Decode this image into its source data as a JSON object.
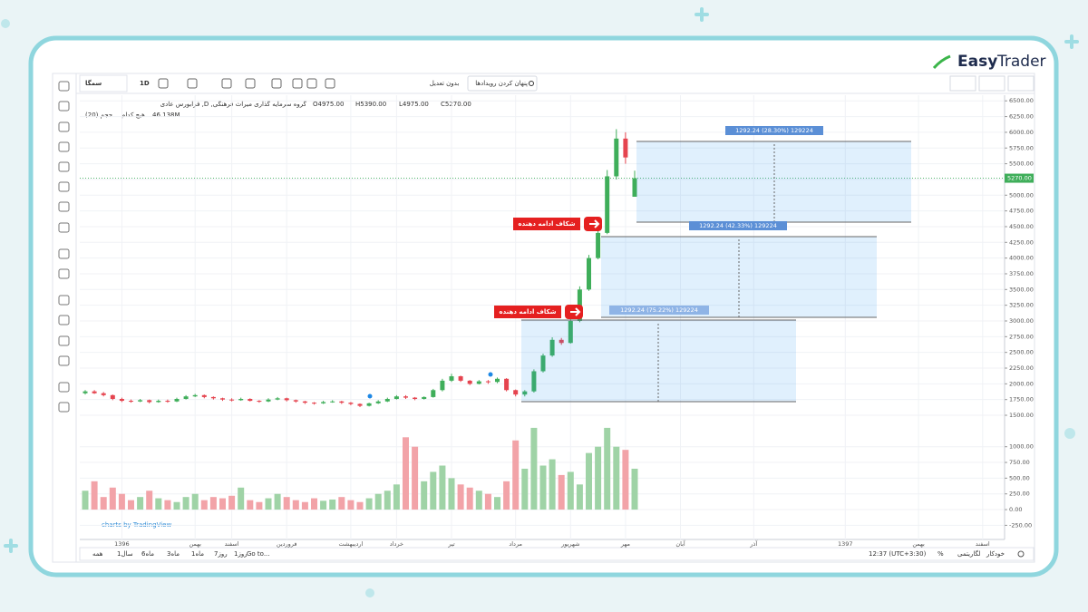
{
  "brand": {
    "easy": "Easy",
    "trader": "Trader"
  },
  "toolbar": {
    "symbol": "سمگا",
    "interval": "1D",
    "adjust": "بدون تعدیل",
    "events": "پنهان کردن رویدادها"
  },
  "legend": {
    "title": "فرابورس عادی ,D ,گروه سرمایه گذاری میراث فرهنگی",
    "o": "O4975.00",
    "h": "H5390.00",
    "l": "L4975.00",
    "c": "C5270.00",
    "volume_name": "حجم (20)",
    "volume_ma": "هیچ کدام",
    "volume_value": "46.138M"
  },
  "chart_data": {
    "type": "candlestick",
    "categories": [
      null,
      null,
      null,
      null,
      "1396",
      null,
      null,
      null,
      null,
      null,
      null,
      null,
      "بهمن",
      null,
      null,
      null,
      "اسفند",
      null,
      null,
      null,
      null,
      null,
      "فروردین",
      null,
      null,
      null,
      null,
      null,
      null,
      "اردیبهشت",
      null,
      null,
      null,
      null,
      "خرداد",
      null,
      null,
      null,
      null,
      null,
      "تیر",
      null,
      null,
      null,
      null,
      null,
      null,
      "مرداد",
      null,
      null,
      null,
      null,
      null,
      "شهریور",
      null,
      null,
      null,
      null,
      null,
      "مهر",
      null,
      null,
      null,
      null,
      null,
      "آبان",
      null,
      null,
      null,
      null,
      null,
      null,
      null,
      "آذر",
      null,
      null,
      null,
      null,
      null,
      null,
      null,
      null,
      null,
      "1397",
      null,
      null,
      null,
      null,
      null,
      null,
      null,
      "بهمن",
      null,
      null,
      null,
      null,
      null,
      null,
      "اسفند",
      null
    ],
    "open": [
      1850,
      1880,
      1850,
      1820,
      1760,
      1730,
      1720,
      1740,
      1710,
      1730,
      1720,
      1760,
      1800,
      1820,
      1790,
      1770,
      1750,
      1740,
      1760,
      1730,
      1720,
      1750,
      1770,
      1740,
      1720,
      1700,
      1690,
      1710,
      1720,
      1700,
      1680,
      1650,
      1690,
      1720,
      1760,
      1800,
      1780,
      1760,
      1790,
      1900,
      2050,
      2120,
      2050,
      2000,
      2040,
      2030,
      2080,
      1900,
      1830,
      1880,
      2200,
      2450,
      2700,
      2650,
      3000,
      3500,
      4000,
      4400,
      5300,
      5900,
      4975,
      null,
      null,
      null,
      null,
      null,
      null,
      null,
      null,
      null,
      null,
      null,
      null,
      null,
      null,
      null,
      null,
      null,
      null,
      null,
      null,
      null,
      null,
      null,
      null,
      null,
      null,
      null,
      null,
      null,
      null,
      null,
      null,
      null,
      null,
      null,
      null,
      null,
      null,
      null
    ],
    "high": [
      1900,
      1900,
      1870,
      1830,
      1780,
      1750,
      1760,
      1750,
      1750,
      1750,
      1780,
      1820,
      1840,
      1830,
      1800,
      1780,
      1770,
      1780,
      1770,
      1740,
      1770,
      1790,
      1780,
      1750,
      1730,
      1710,
      1730,
      1740,
      1730,
      1710,
      1690,
      1700,
      1740,
      1780,
      1820,
      1820,
      1790,
      1800,
      1920,
      2080,
      2160,
      2130,
      2060,
      2060,
      2060,
      2100,
      2090,
      1910,
      1900,
      2230,
      2480,
      2740,
      2730,
      3050,
      3550,
      4050,
      4450,
      5400,
      6050,
      6000,
      5390,
      null,
      null,
      null,
      null,
      null,
      null,
      null,
      null,
      null,
      null,
      null,
      null,
      null,
      null,
      null,
      null,
      null,
      null,
      null,
      null,
      null,
      null,
      null,
      null,
      null,
      null,
      null,
      null,
      null,
      null,
      null,
      null,
      null,
      null,
      null,
      null,
      null,
      null,
      null
    ],
    "low": [
      1830,
      1840,
      1800,
      1740,
      1710,
      1700,
      1710,
      1690,
      1700,
      1700,
      1710,
      1750,
      1790,
      1770,
      1750,
      1730,
      1720,
      1730,
      1720,
      1700,
      1710,
      1740,
      1720,
      1700,
      1680,
      1670,
      1680,
      1700,
      1680,
      1660,
      1630,
      1640,
      1680,
      1710,
      1750,
      1760,
      1740,
      1750,
      1780,
      1880,
      2030,
      2030,
      1980,
      1990,
      2000,
      2010,
      1880,
      1800,
      1800,
      1860,
      2180,
      2430,
      2620,
      2640,
      2980,
      3480,
      3980,
      4380,
      5250,
      5500,
      4975,
      null,
      null,
      null,
      null,
      null,
      null,
      null,
      null,
      null,
      null,
      null,
      null,
      null,
      null,
      null,
      null,
      null,
      null,
      null,
      null,
      null,
      null,
      null,
      null,
      null,
      null,
      null,
      null,
      null,
      null,
      null,
      null,
      null,
      null,
      null,
      null,
      null,
      null,
      null
    ],
    "close": [
      1880,
      1850,
      1820,
      1760,
      1730,
      1720,
      1740,
      1710,
      1730,
      1720,
      1760,
      1800,
      1820,
      1790,
      1770,
      1750,
      1740,
      1760,
      1730,
      1720,
      1750,
      1770,
      1740,
      1720,
      1700,
      1690,
      1710,
      1720,
      1700,
      1680,
      1650,
      1690,
      1720,
      1760,
      1800,
      1780,
      1760,
      1790,
      1900,
      2050,
      2120,
      2050,
      2000,
      2040,
      2030,
      2080,
      1900,
      1830,
      1880,
      2200,
      2450,
      2700,
      2650,
      3000,
      3500,
      4000,
      4400,
      5300,
      5900,
      5600,
      5270,
      null,
      null,
      null,
      null,
      null,
      null,
      null,
      null,
      null,
      null,
      null,
      null,
      null,
      null,
      null,
      null,
      null,
      null,
      null,
      null,
      null,
      null,
      null,
      null,
      null,
      null,
      null,
      null,
      null,
      null,
      null,
      null,
      null,
      null,
      null,
      null,
      null,
      null,
      null
    ],
    "volume": [
      300,
      450,
      200,
      350,
      250,
      150,
      200,
      300,
      180,
      150,
      120,
      200,
      250,
      150,
      200,
      180,
      220,
      350,
      150,
      120,
      180,
      250,
      200,
      150,
      120,
      180,
      140,
      160,
      200,
      150,
      120,
      180,
      250,
      300,
      400,
      1150,
      1000,
      450,
      600,
      700,
      500,
      400,
      350,
      300,
      250,
      200,
      450,
      1100,
      650,
      1300,
      700,
      800,
      550,
      600,
      400,
      900,
      1000,
      1300,
      1000,
      950,
      650,
      null,
      null,
      null,
      null,
      null,
      null,
      null,
      null,
      null,
      null,
      null,
      null,
      null,
      null,
      null,
      null,
      null,
      null,
      null,
      null,
      null,
      null,
      null,
      null,
      null,
      null,
      null,
      null,
      null,
      null,
      null,
      null,
      null,
      null,
      null,
      null,
      null,
      null,
      null
    ],
    "last_label": "5270.00",
    "colors": {
      "up": "#3fae5a",
      "down": "#e5444f",
      "volume_up": "#9fd3a6",
      "volume_down": "#f2a3a8",
      "last": "#3fae5a"
    },
    "ylim": [
      -475,
      6590
    ],
    "yticks": [
      {
        "value": 6500,
        "label": "6500.00"
      },
      {
        "value": 6250,
        "label": "6250.00"
      },
      {
        "value": 6000,
        "label": "6000.00"
      },
      {
        "value": 5750,
        "label": "5750.00"
      },
      {
        "value": 5500,
        "label": "5500.00"
      },
      {
        "value": 5250,
        "label": "5250.00"
      },
      {
        "value": 5000,
        "label": "5000.00"
      },
      {
        "value": 4750,
        "label": "4750.00"
      },
      {
        "value": 4500,
        "label": "4500.00"
      },
      {
        "value": 4250,
        "label": "4250.00"
      },
      {
        "value": 4000,
        "label": "4000.00"
      },
      {
        "value": 3750,
        "label": "3750.00"
      },
      {
        "value": 3500,
        "label": "3500.00"
      },
      {
        "value": 3250,
        "label": "3250.00"
      },
      {
        "value": 3000,
        "label": "3000.00"
      },
      {
        "value": 2750,
        "label": "2750.00"
      },
      {
        "value": 2500,
        "label": "2500.00"
      },
      {
        "value": 2250,
        "label": "2250.00"
      },
      {
        "value": 2000,
        "label": "2000.00"
      },
      {
        "value": 1750,
        "label": "1750.00"
      },
      {
        "value": 1500,
        "label": "1500.00"
      },
      {
        "value": 1000,
        "label": "1000.00"
      },
      {
        "value": 750,
        "label": "750.00"
      },
      {
        "value": 500,
        "label": "500.00"
      },
      {
        "value": 250,
        "label": "250.00"
      },
      {
        "value": 0,
        "label": "0.00"
      },
      {
        "value": -250,
        "label": "-250.00"
      }
    ],
    "grid": true,
    "log_scale": false
  },
  "annotations": {
    "measures": [
      "1292.24 (28.30%) 129224",
      "1292.24 (42.33%) 129224",
      "1292.24 (75.22%) 129224"
    ],
    "gaps": [
      "شکاف ادامه دهنده",
      "شکاف ادامه دهنده"
    ]
  },
  "watermark": "charts by TradingView",
  "bottom_bar": {
    "ranges": [
      "همه",
      "1سال",
      "6ماه",
      "3ماه",
      "1ماه",
      "7روز",
      "1روز"
    ],
    "goto": "Go to...",
    "time": "12:37 (UTC+3:30)",
    "percent": "%",
    "log": "لگاریتمی",
    "auto": "خودکار"
  }
}
